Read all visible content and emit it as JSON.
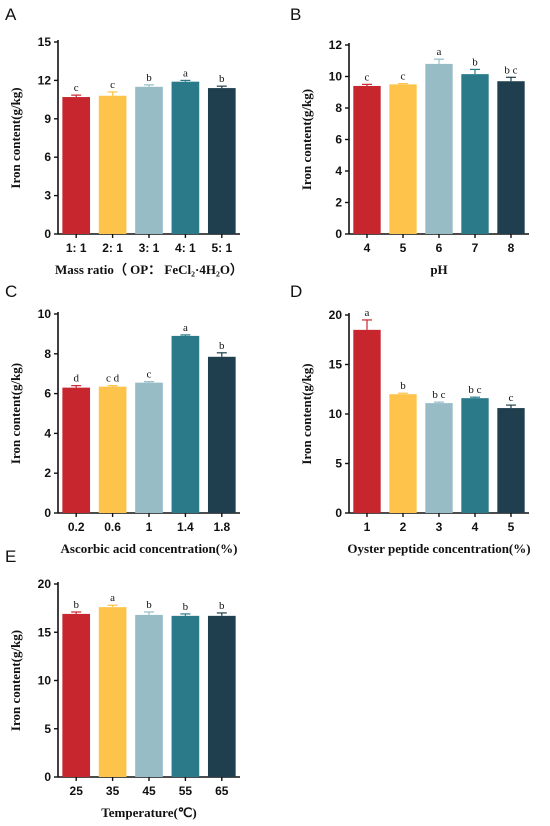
{
  "colors": [
    "#c8262f",
    "#fec34a",
    "#97bcc6",
    "#2a7a89",
    "#1f3f4e"
  ],
  "chart_data": [
    {
      "panel": "A",
      "type": "bar",
      "categories": [
        "1: 1",
        "2: 1",
        "3: 1",
        "4: 1",
        "5: 1"
      ],
      "values": [
        10.7,
        10.8,
        11.5,
        11.9,
        11.4
      ],
      "errors": [
        0.15,
        0.3,
        0.15,
        0.1,
        0.15
      ],
      "labels": [
        "c",
        "c",
        "b",
        "a",
        "b"
      ],
      "xlabel": "Mass ratio（ OP： FeCl₂·4H₂O）",
      "ylabel": "Iron content(g/kg)",
      "ylim": [
        0,
        15
      ],
      "yticks": [
        0,
        3,
        6,
        9,
        12,
        15
      ]
    },
    {
      "panel": "B",
      "type": "bar",
      "categories": [
        "4",
        "5",
        "6",
        "7",
        "8"
      ],
      "values": [
        9.4,
        9.5,
        10.8,
        10.15,
        9.7
      ],
      "errors": [
        0.1,
        0.05,
        0.3,
        0.3,
        0.25
      ],
      "labels": [
        "c",
        "c",
        "a",
        "b",
        "b c"
      ],
      "xlabel": "pH",
      "ylabel": "Iron content(g/kg)",
      "ylim": [
        0,
        12
      ],
      "yticks": [
        0,
        2,
        4,
        6,
        8,
        10,
        12
      ]
    },
    {
      "panel": "C",
      "type": "bar",
      "categories": [
        "0.2",
        "0.6",
        "1",
        "1.4",
        "1.8"
      ],
      "values": [
        6.3,
        6.35,
        6.55,
        8.9,
        7.85
      ],
      "errors": [
        0.1,
        0.05,
        0.05,
        0.05,
        0.2
      ],
      "labels": [
        "d",
        "c d",
        "c",
        "a",
        "b"
      ],
      "xlabel": "Ascorbic acid concentration(%)",
      "ylabel": "Iron content(g/kg)",
      "ylim": [
        0,
        10
      ],
      "yticks": [
        0,
        2,
        4,
        6,
        8,
        10
      ]
    },
    {
      "panel": "D",
      "type": "bar",
      "categories": [
        "1",
        "2",
        "3",
        "4",
        "5"
      ],
      "values": [
        18.5,
        12.0,
        11.1,
        11.6,
        10.6
      ],
      "errors": [
        1.0,
        0.1,
        0.1,
        0.1,
        0.3
      ],
      "labels": [
        "a",
        "b",
        "b c",
        "b c",
        "c"
      ],
      "xlabel": "Oyster peptide concentration(%)",
      "ylabel": "Iron content(g/kg)",
      "ylim": [
        0,
        20
      ],
      "yticks": [
        0,
        5,
        10,
        15,
        20
      ]
    },
    {
      "panel": "E",
      "type": "bar",
      "categories": [
        "25",
        "35",
        "45",
        "55",
        "65"
      ],
      "values": [
        16.9,
        17.6,
        16.8,
        16.7,
        16.7
      ],
      "errors": [
        0.2,
        0.2,
        0.3,
        0.2,
        0.3
      ],
      "labels": [
        "b",
        "a",
        "b",
        "b",
        "b"
      ],
      "xlabel": "Temperature(℃)",
      "ylabel": "Iron content(g/kg)",
      "ylim": [
        0,
        20
      ],
      "yticks": [
        0,
        5,
        10,
        15,
        20
      ]
    }
  ]
}
